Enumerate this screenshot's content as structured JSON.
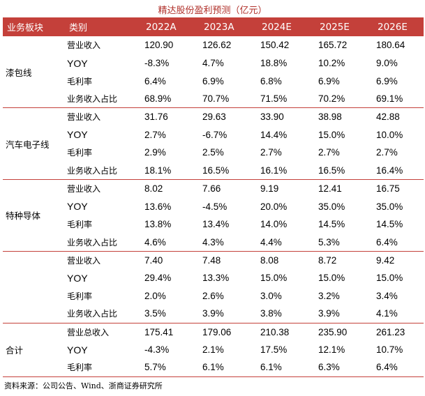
{
  "title": "精达股份盈利预测（亿元）",
  "headers": [
    "业务板块",
    "类别",
    "2022A",
    "2023A",
    "2024E",
    "2025E",
    "2026E"
  ],
  "groups": [
    {
      "name": "漆包线",
      "rows": [
        {
          "label": "营业收入",
          "values": [
            "120.90",
            "126.62",
            "150.42",
            "165.72",
            "180.64"
          ]
        },
        {
          "label": "YOY",
          "values": [
            "-8.3%",
            "4.7%",
            "18.8%",
            "10.2%",
            "9.0%"
          ]
        },
        {
          "label": "毛利率",
          "values": [
            "6.4%",
            "6.9%",
            "6.8%",
            "6.9%",
            "6.9%"
          ]
        },
        {
          "label": "业务收入占比",
          "values": [
            "68.9%",
            "70.7%",
            "71.5%",
            "70.2%",
            "69.1%"
          ]
        }
      ]
    },
    {
      "name": "汽车电子线",
      "rows": [
        {
          "label": "营业收入",
          "values": [
            "31.76",
            "29.63",
            "33.90",
            "38.98",
            "42.88"
          ]
        },
        {
          "label": "YOY",
          "values": [
            "2.7%",
            "-6.7%",
            "14.4%",
            "15.0%",
            "10.0%"
          ]
        },
        {
          "label": "毛利率",
          "values": [
            "2.9%",
            "2.5%",
            "2.7%",
            "2.7%",
            "2.7%"
          ]
        },
        {
          "label": "业务收入占比",
          "values": [
            "18.1%",
            "16.5%",
            "16.1%",
            "16.5%",
            "16.4%"
          ]
        }
      ]
    },
    {
      "name": "特种导体",
      "rows": [
        {
          "label": "营业收入",
          "values": [
            "8.02",
            "7.66",
            "9.19",
            "12.41",
            "16.75"
          ]
        },
        {
          "label": "YOY",
          "values": [
            "13.6%",
            "-4.5%",
            "20.0%",
            "35.0%",
            "35.0%"
          ]
        },
        {
          "label": "毛利率",
          "values": [
            "13.8%",
            "13.4%",
            "14.0%",
            "14.5%",
            "14.5%"
          ]
        },
        {
          "label": "业务收入占比",
          "values": [
            "4.6%",
            "4.3%",
            "4.4%",
            "5.3%",
            "6.4%"
          ]
        }
      ]
    },
    {
      "name": "",
      "rows": [
        {
          "label": "营业收入",
          "values": [
            "7.40",
            "7.48",
            "8.08",
            "8.72",
            "9.42"
          ]
        },
        {
          "label": "YOY",
          "values": [
            "29.4%",
            "13.3%",
            "15.0%",
            "15.0%",
            "15.0%"
          ]
        },
        {
          "label": "毛利率",
          "values": [
            "2.0%",
            "2.6%",
            "3.0%",
            "3.2%",
            "3.4%"
          ]
        },
        {
          "label": "业务收入占比",
          "values": [
            "3.5%",
            "3.9%",
            "3.8%",
            "3.9%",
            "4.1%"
          ]
        }
      ]
    },
    {
      "name": "合计",
      "rows": [
        {
          "label": "营业总收入",
          "values": [
            "175.41",
            "179.06",
            "210.38",
            "235.90",
            "261.23"
          ]
        },
        {
          "label": "YOY",
          "values": [
            "-4.3%",
            "2.1%",
            "17.5%",
            "12.1%",
            "10.7%"
          ]
        },
        {
          "label": "毛利率",
          "values": [
            "5.7%",
            "6.1%",
            "6.1%",
            "6.3%",
            "6.4%"
          ]
        }
      ]
    }
  ],
  "source": "资料来源：公司公告、Wind、浙商证券研究所",
  "colors": {
    "accent": "#c4403a",
    "title": "#b0302a"
  }
}
